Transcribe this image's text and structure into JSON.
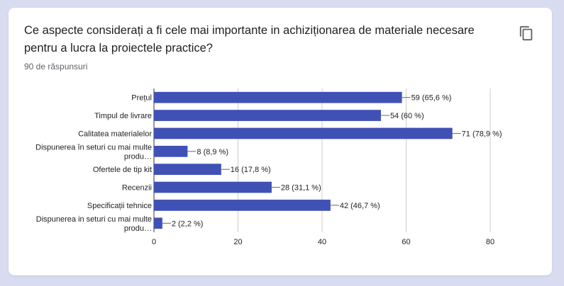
{
  "question": "Ce aspecte considerați a fi cele mai importante in achiziționarea de materiale necesare pentru a lucra la proiectele practice?",
  "response_count": "90 de răspunsuri",
  "copy_icon": "copy-icon",
  "colors": {
    "bar": "#3f51b5",
    "grid": "#cccccc",
    "background": "#d9dcf0"
  },
  "chart_data": {
    "type": "bar",
    "orientation": "horizontal",
    "categories": [
      [
        "Prețul"
      ],
      [
        "Timpul de livrare"
      ],
      [
        "Calitatea materialelor"
      ],
      [
        "Dispunerea în seturi cu mai multe",
        "produ…"
      ],
      [
        "Ofertele de tip kit"
      ],
      [
        "Recenzii"
      ],
      [
        "Specificații tehnice"
      ],
      [
        "Dispunerea in seturi cu mai multe",
        "produ…"
      ]
    ],
    "values": [
      59,
      54,
      71,
      8,
      16,
      28,
      42,
      2
    ],
    "data_labels": [
      "59 (65,6 %)",
      "54 (60 %)",
      "71 (78,9 %)",
      "8 (8,9 %)",
      "16 (17,8 %)",
      "28 (31,1 %)",
      "42 (46,7 %)",
      "2 (2,2 %)"
    ],
    "xlim": [
      0,
      80
    ],
    "xticks": [
      0,
      20,
      40,
      60,
      80
    ],
    "grid": true
  }
}
